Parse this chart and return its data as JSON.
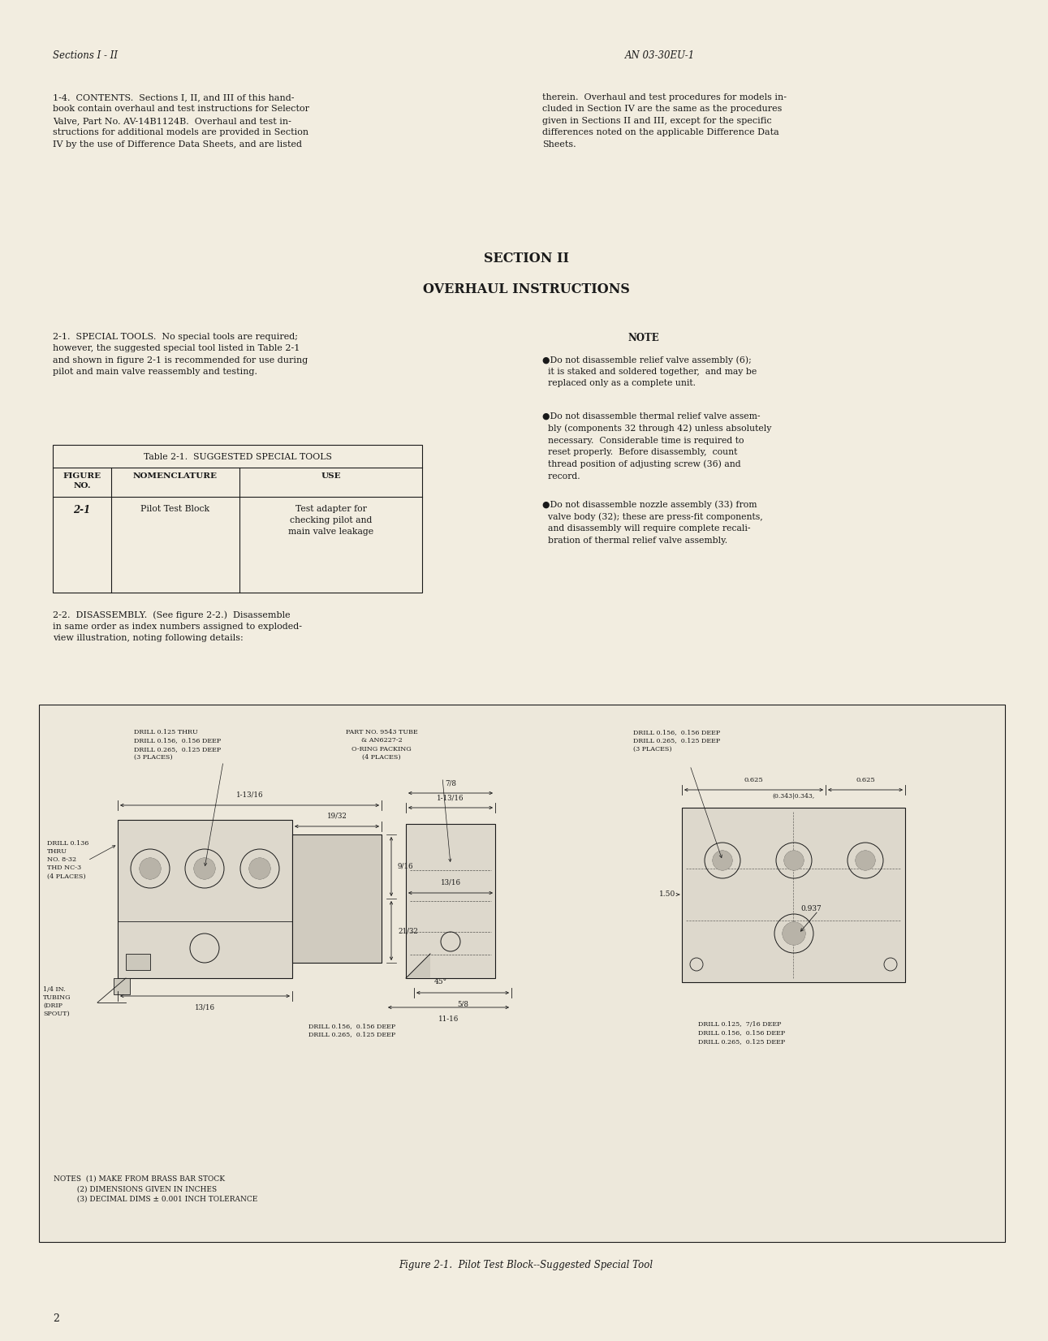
{
  "page_bg": "#f2ede0",
  "text_color": "#1a1a1a",
  "header_left": "Sections I - II",
  "header_center": "AN 03-30EU-1",
  "section_title": "SECTION II",
  "section_subtitle": "OVERHAUL INSTRUCTIONS",
  "para_1_4_left": "1-4.  CONTENTS.  Sections I, II, and III of this hand-\nbook contain overhaul and test instructions for Selector\nValve, Part No. AV-14B1124B.  Overhaul and test in-\nstructions for additional models are provided in Section\nIV by the use of Difference Data Sheets, and are listed",
  "para_1_4_right": "therein.  Overhaul and test procedures for models in-\ncluded in Section IV are the same as the procedures\ngiven in Sections II and III, except for the specific\ndifferences noted on the applicable Difference Data\nSheets.",
  "para_2_1": "2-1.  SPECIAL TOOLS.  No special tools are required;\nhowever, the suggested special tool listed in Table 2-1\nand shown in figure 2-1 is recommended for use during\npilot and main valve reassembly and testing.",
  "note_title": "NOTE",
  "note_1": "●Do not disassemble relief valve assembly (6);\n  it is staked and soldered together,  and may be\n  replaced only as a complete unit.",
  "note_2": "●Do not disassemble thermal relief valve assem-\n  bly (components 32 through 42) unless absolutely\n  necessary.  Considerable time is required to\n  reset properly.  Before disassembly,  count\n  thread position of adjusting screw (36) and\n  record.",
  "note_3": "●Do not disassemble nozzle assembly (33) from\n  valve body (32); these are press-fit components,\n  and disassembly will require complete recali-\n  bration of thermal relief valve assembly.",
  "table_title": "Table 2-1.  SUGGESTED SPECIAL TOOLS",
  "para_2_2": "2-2.  DISASSEMBLY.  (See figure 2-2.)  Disassemble\nin same order as index numbers assigned to exploded-\nview illustration, noting following details:",
  "figure_caption": "Figure 2-1.  Pilot Test Block--Suggested Special Tool",
  "page_number": "2",
  "diagram_notes": "NOTES  (1) MAKE FROM BRASS BAR STOCK\n          (2) DIMENSIONS GIVEN IN INCHES\n          (3) DECIMAL DIMS ± 0.001 INCH TOLERANCE"
}
